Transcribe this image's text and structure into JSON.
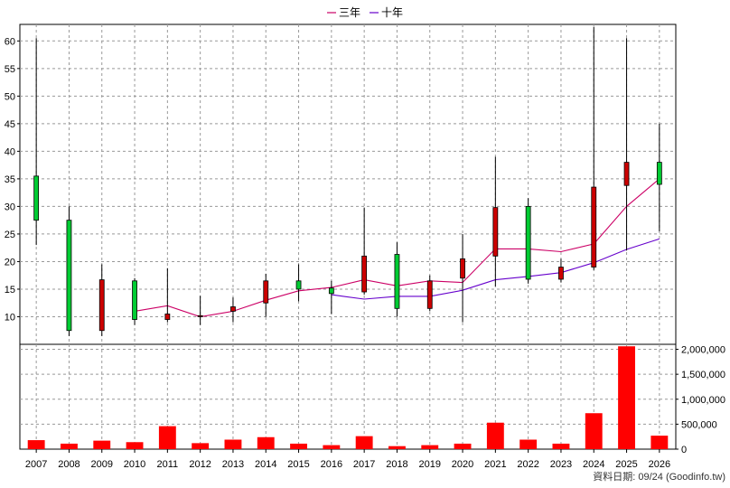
{
  "chart_data": {
    "type": "candlestick",
    "legend": [
      {
        "name": "三年",
        "color": "#cc0066"
      },
      {
        "name": "十年",
        "color": "#6600cc"
      }
    ],
    "legend_position": "top-center",
    "grid": true,
    "categories": [
      "2007",
      "2008",
      "2009",
      "2010",
      "2011",
      "2012",
      "2013",
      "2014",
      "2015",
      "2016",
      "2017",
      "2018",
      "2019",
      "2020",
      "2021",
      "2022",
      "2023",
      "2024",
      "2025",
      "2026"
    ],
    "price": {
      "ylim": [
        5,
        63
      ],
      "yticks": [
        10,
        15,
        20,
        25,
        30,
        35,
        40,
        45,
        50,
        55,
        60
      ],
      "ohlc": [
        {
          "open": 27.5,
          "high": 60.5,
          "low": 23.0,
          "close": 35.5
        },
        {
          "open": 7.5,
          "high": 30.0,
          "low": 6.5,
          "close": 27.5
        },
        {
          "open": 16.7,
          "high": 19.5,
          "low": 6.5,
          "close": 7.5
        },
        {
          "open": 9.5,
          "high": 17.0,
          "low": 8.5,
          "close": 16.5
        },
        {
          "open": 10.5,
          "high": 18.8,
          "low": 9.0,
          "close": 9.5
        },
        {
          "open": 10.2,
          "high": 13.8,
          "low": 8.5,
          "close": 10.0
        },
        {
          "open": 11.8,
          "high": 13.5,
          "low": 9.0,
          "close": 11.0
        },
        {
          "open": 16.5,
          "high": 17.8,
          "low": 10.0,
          "close": 12.5
        },
        {
          "open": 15.0,
          "high": 19.5,
          "low": 12.8,
          "close": 16.5
        },
        {
          "open": 14.2,
          "high": 16.5,
          "low": 10.5,
          "close": 15.2
        },
        {
          "open": 21.0,
          "high": 29.8,
          "low": 14.0,
          "close": 14.5
        },
        {
          "open": 11.5,
          "high": 23.5,
          "low": 10.0,
          "close": 21.3
        },
        {
          "open": 16.5,
          "high": 17.5,
          "low": 11.0,
          "close": 11.5
        },
        {
          "open": 20.5,
          "high": 25.0,
          "low": 9.0,
          "close": 17.0
        },
        {
          "open": 29.8,
          "high": 39.0,
          "low": 15.5,
          "close": 21.0
        },
        {
          "open": 16.8,
          "high": 31.5,
          "low": 16.0,
          "close": 30.0
        },
        {
          "open": 19.0,
          "high": 20.5,
          "low": 16.2,
          "close": 16.8
        },
        {
          "open": 33.5,
          "high": 62.5,
          "low": 18.5,
          "close": 19.0
        },
        {
          "open": 38.0,
          "high": 60.5,
          "low": 22.0,
          "close": 33.8
        },
        {
          "open": 34.0,
          "high": 45.0,
          "low": 25.5,
          "close": 38.0
        }
      ],
      "series": [
        {
          "name": "三年",
          "color": "#cc0066",
          "values": [
            null,
            null,
            null,
            11.0,
            12.0,
            10.0,
            11.0,
            13.0,
            14.7,
            15.3,
            16.7,
            15.6,
            16.5,
            16.2,
            22.3,
            22.3,
            21.8,
            23.2,
            30.0,
            35.0
          ]
        },
        {
          "name": "十年",
          "color": "#6600cc",
          "values": [
            null,
            null,
            null,
            null,
            null,
            null,
            null,
            null,
            null,
            14.0,
            13.2,
            13.7,
            13.7,
            14.8,
            16.7,
            17.3,
            18.0,
            19.8,
            22.2,
            24.1
          ]
        }
      ],
      "up_color": "#00cc33",
      "down_color": "#cc0000"
    },
    "volume": {
      "ylim": [
        0,
        2100000
      ],
      "yticks": [
        0,
        500000,
        1000000,
        1500000,
        2000000
      ],
      "ytick_labels": [
        "0",
        "500,000",
        "1,000,000",
        "1,500,000",
        "2,000,000"
      ],
      "values": [
        180000,
        110000,
        170000,
        140000,
        460000,
        120000,
        190000,
        240000,
        110000,
        80000,
        260000,
        60000,
        80000,
        110000,
        530000,
        190000,
        110000,
        720000,
        2060000,
        270000
      ],
      "color": "#ff0000"
    },
    "footer": "資料日期: 09/24  (Goodinfo.tw)"
  }
}
